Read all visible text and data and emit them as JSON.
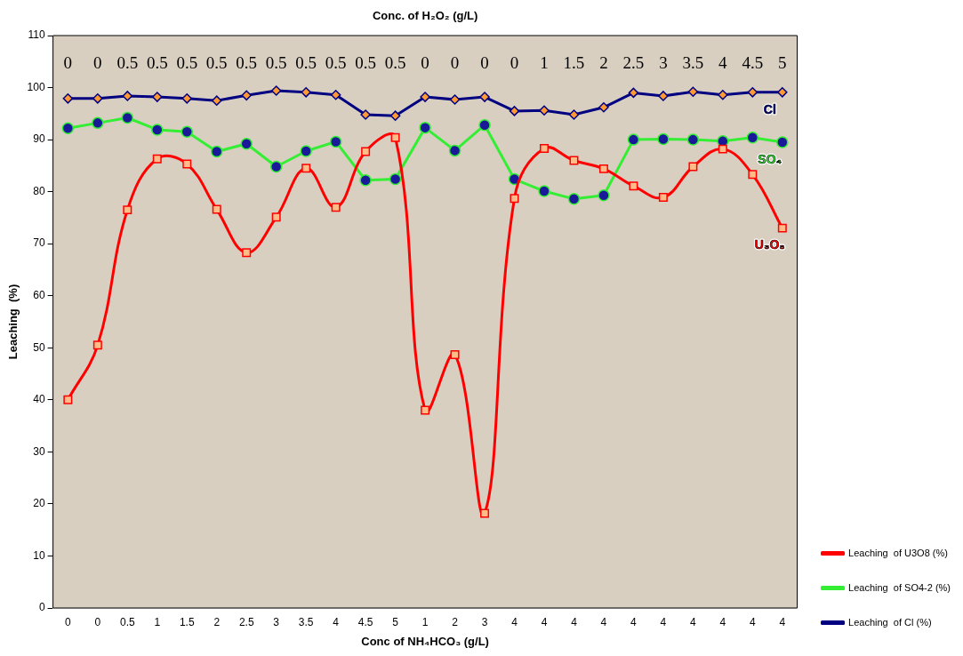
{
  "chart_data": {
    "type": "line",
    "x2label": "Conc. of H₂O₂ (g/L)",
    "xlabel": "Conc of NH₄HCO₃ (g/L)",
    "ylabel": "Leaching  (%)",
    "categories": [
      "0",
      "0",
      "0.5",
      "1",
      "1.5",
      "2",
      "2.5",
      "3",
      "3.5",
      "4",
      "4.5",
      "5",
      "1",
      "2",
      "3",
      "4",
      "4",
      "4",
      "4",
      "4",
      "4",
      "4",
      "4",
      "4",
      "4"
    ],
    "ylim": [
      0,
      110
    ],
    "yticks": [
      0,
      10,
      20,
      30,
      40,
      50,
      60,
      70,
      80,
      90,
      100,
      110
    ],
    "grid": false,
    "legend": "bottom right",
    "series": [
      {
        "name": "Leaching  of U3O8 (%)",
        "color": "#ff0000",
        "marker": "square",
        "values": [
          40,
          50.5,
          76.5,
          86.3,
          85.3,
          76.6,
          68.3,
          75.1,
          84.5,
          77,
          87.7,
          90.4,
          38,
          48.7,
          18.2,
          78.7,
          88.3,
          86,
          84.4,
          81.1,
          78.9,
          84.8,
          88.2,
          83.3,
          73
        ]
      },
      {
        "name": "Leaching  of SO4-2 (%)",
        "color": "#33ee33",
        "marker": "circle",
        "values": [
          92.2,
          93.2,
          94.2,
          91.9,
          91.5,
          87.7,
          89.2,
          84.8,
          87.8,
          89.6,
          82.2,
          82.4,
          92.3,
          87.9,
          92.8,
          82.4,
          80.1,
          78.6,
          79.3,
          90,
          90.1,
          90,
          89.7,
          90.4,
          89.5
        ]
      },
      {
        "name": "Leaching  of Cl (%)",
        "color": "#000080",
        "marker": "diamond",
        "values": [
          97.9,
          97.9,
          98.4,
          98.2,
          97.9,
          97.5,
          98.5,
          99.4,
          99.1,
          98.6,
          94.8,
          94.6,
          98.2,
          97.7,
          98.2,
          95.5,
          95.6,
          94.8,
          96.2,
          99,
          98.4,
          99.2,
          98.6,
          99.1,
          99.1
        ]
      }
    ],
    "annotations": [
      "U₃O₈",
      "SO₄",
      "Cl",
      "0",
      "0",
      "0.5",
      "0.5",
      "0.5",
      "0.5",
      "0.5",
      "0.5",
      "0.5",
      "0.5",
      "0.5",
      "0.5",
      "0",
      "0",
      "0",
      "0",
      "1",
      "1.5",
      "2",
      "2.5",
      "3",
      "3.5",
      "4",
      "4.5",
      "5"
    ]
  }
}
